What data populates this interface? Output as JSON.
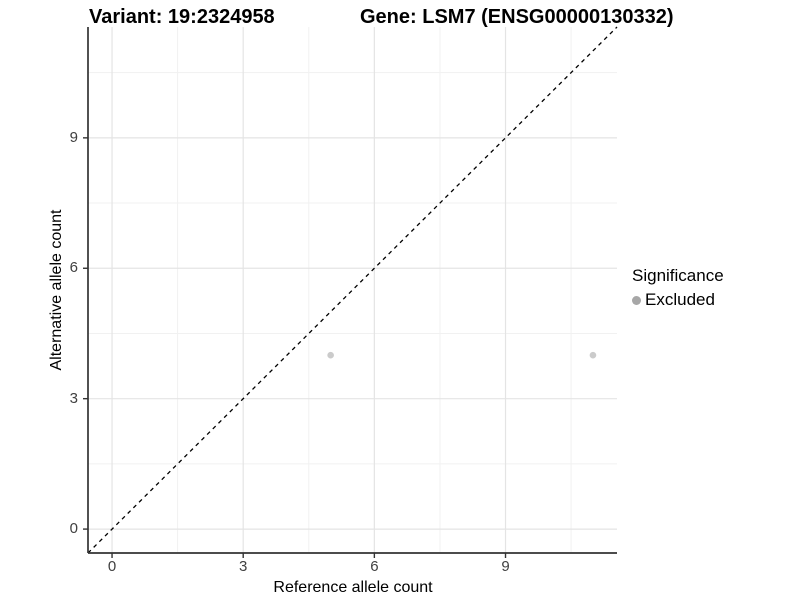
{
  "titles": {
    "variant": "Variant: 19:2324958",
    "gene": "Gene: LSM7 (ENSG00000130332)"
  },
  "axes": {
    "x": {
      "label": "Reference allele count",
      "tick_labels": [
        "0",
        "3",
        "6",
        "9"
      ]
    },
    "y": {
      "label": "Alternative allele count",
      "tick_labels": [
        "0",
        "3",
        "6",
        "9"
      ]
    }
  },
  "legend": {
    "title": "Significance",
    "items": [
      {
        "label": "Excluded",
        "color": "#a7a7a7"
      }
    ]
  },
  "colors": {
    "point": "#cbcbcb",
    "legend_point": "#a7a7a7",
    "grid_major": "#e4e4e4",
    "grid_minor": "#f1f1f1",
    "axis_line": "#333333",
    "tick_mark": "#333333",
    "tick_label": "#404040",
    "identity_line": "#000000"
  },
  "chart_data": {
    "type": "scatter",
    "title": "Variant: 19:2324958 — Gene: LSM7 (ENSG00000130332)",
    "xlabel": "Reference allele count",
    "ylabel": "Alternative allele count",
    "xlim": [
      -0.55,
      11.55
    ],
    "ylim": [
      -0.55,
      11.55
    ],
    "x_ticks": [
      0,
      3,
      6,
      9
    ],
    "y_ticks": [
      0,
      3,
      6,
      9
    ],
    "x_minor_ticks": [
      1.5,
      4.5,
      7.5,
      10.5
    ],
    "y_minor_ticks": [
      1.5,
      4.5,
      7.5,
      10.5
    ],
    "grid": "major+minor",
    "legend_position": "right",
    "legend_title": "Significance",
    "identity_line": {
      "style": "dashed",
      "equation": "y = x",
      "from": [
        -0.55,
        -0.55
      ],
      "to": [
        11.55,
        11.55
      ]
    },
    "series": [
      {
        "name": "Excluded",
        "points": [
          {
            "x": 5,
            "y": 4
          },
          {
            "x": 11,
            "y": 4
          }
        ]
      }
    ]
  }
}
